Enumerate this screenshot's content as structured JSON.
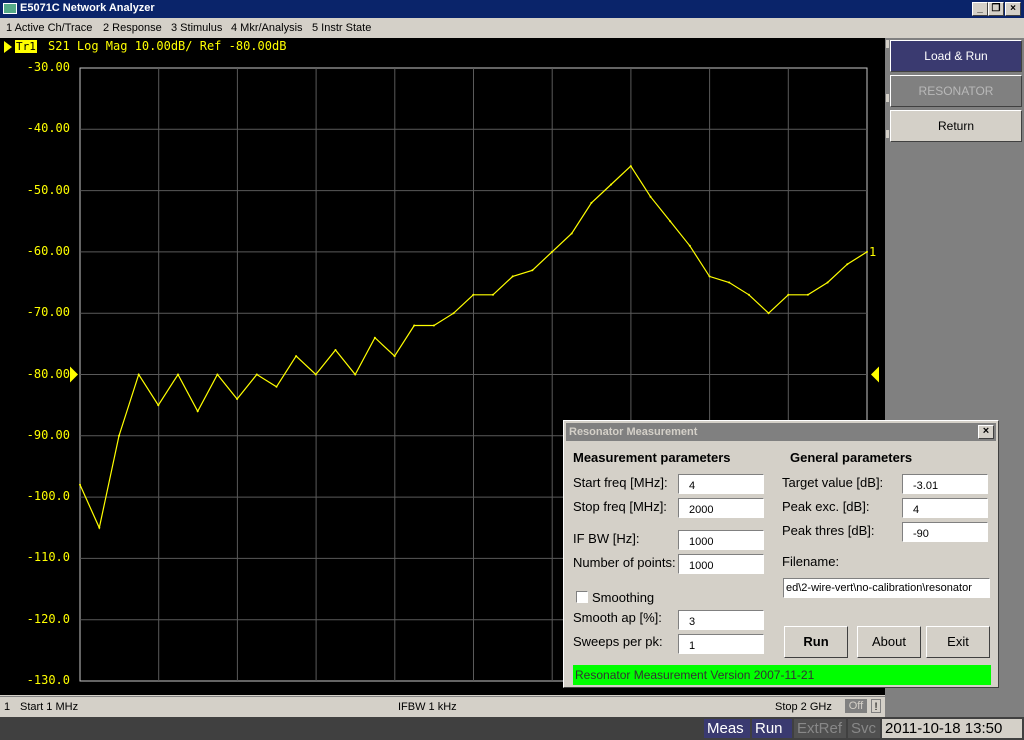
{
  "window": {
    "title": "E5071C Network Analyzer",
    "min": "_",
    "restore": "❐",
    "close": "×"
  },
  "menu": [
    "1 Active Ch/Trace",
    "2 Response",
    "3 Stimulus",
    "4 Mkr/Analysis",
    "5 Instr State"
  ],
  "trace": {
    "id": "Tr1",
    "label": "S21 Log Mag 10.00dB/ Ref -80.00dB",
    "marker_label": "1",
    "color": "#ffff00"
  },
  "chart_data": {
    "type": "line",
    "title": "",
    "xlabel": "",
    "ylabel": "",
    "x_start_mhz": 1,
    "x_stop_mhz": 2000,
    "ylim": [
      -130,
      -30
    ],
    "y_ticks": [
      "-30.00",
      "-40.00",
      "-50.00",
      "-60.00",
      "-70.00",
      "-80.00",
      "-90.00",
      "-100.0",
      "-110.0",
      "-120.0",
      "-130.0"
    ],
    "grid": true,
    "reference_level": -80,
    "series": [
      {
        "x": [
          1,
          50,
          100,
          150,
          200,
          250,
          300,
          350,
          400,
          450,
          500,
          550,
          600,
          650,
          700,
          750,
          800,
          850,
          900,
          950,
          1000,
          1050,
          1100,
          1150,
          1200,
          1250,
          1300,
          1350,
          1400,
          1450,
          1500,
          1550,
          1600,
          1650,
          1700,
          1750,
          1800,
          1850,
          1900,
          1950,
          2000
        ],
        "y": [
          -98,
          -105,
          -90,
          -80,
          -85,
          -80,
          -86,
          -80,
          -84,
          -80,
          -82,
          -77,
          -80,
          -76,
          -80,
          -74,
          -77,
          -72,
          -72,
          -70,
          -67,
          -67,
          -64,
          -63,
          -60,
          -57,
          -52,
          -49,
          -46,
          -51,
          -55,
          -59,
          -64,
          -65,
          -67,
          -70,
          -67,
          -67,
          -65,
          -62,
          -60
        ]
      }
    ]
  },
  "status": {
    "start": "Start 1 MHz",
    "ifbw": "IFBW 1 kHz",
    "stop": "Stop 2 GHz",
    "channel": "1",
    "off": "Off",
    "excl": "!"
  },
  "softkeys": [
    {
      "label": "Load & Run",
      "state": "active"
    },
    {
      "label": "RESONATOR",
      "state": "disabled"
    },
    {
      "label": "Return",
      "state": "normal"
    }
  ],
  "bottom": {
    "meas": "Meas",
    "run": "Run",
    "extref": "ExtRef",
    "svc": "Svc",
    "datetime": "2011-10-18 13:50"
  },
  "dialog": {
    "title": "Resonator Measurement",
    "meas_header": "Measurement parameters",
    "gen_header": "General parameters",
    "start_label": "Start freq [MHz]:",
    "start_value": "4",
    "stop_label": "Stop freq [MHz]:",
    "stop_value": "2000",
    "ifbw_label": "IF BW [Hz]:",
    "ifbw_value": "1000",
    "points_label": "Number of points:",
    "points_value": "1000",
    "smoothing_label": "Smoothing",
    "smooth_ap_label": "Smooth ap [%]:",
    "smooth_ap_value": "3",
    "sweeps_label": "Sweeps per pk:",
    "sweeps_value": "1",
    "target_label": "Target value [dB]:",
    "target_value": "-3.01",
    "peakexc_label": "Peak exc. [dB]:",
    "peakexc_value": "4",
    "peakthr_label": "Peak thres [dB]:",
    "peakthr_value": "-90",
    "filename_label": "Filename:",
    "filename_value": "ed\\2-wire-vert\\no-calibration\\resonator",
    "run": "Run",
    "about": "About",
    "exit": "Exit",
    "version": "Resonator Measurement Version 2007-11-21"
  }
}
